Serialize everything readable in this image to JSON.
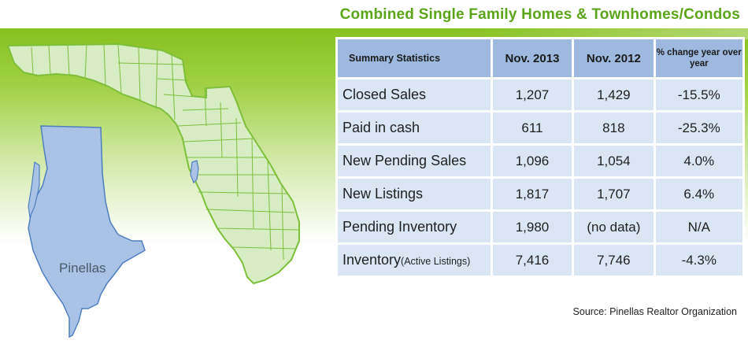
{
  "title": "Combined Single Family Homes & Townhomes/Condos",
  "map": {
    "label": "Pinellas",
    "land_color": "#d9edc4",
    "border_color": "#7cbf3a",
    "highlight_color": "#a9c3e6"
  },
  "colors": {
    "accent": "#5aa51a",
    "header_bg": "#9eb9df",
    "cell_bg": "#dbe6f4"
  },
  "table": {
    "headers": [
      "Summary Statistics",
      "Nov. 2013",
      "Nov. 2012",
      "% change year over year"
    ],
    "rows": [
      {
        "label": "Closed Sales",
        "label_sub": "",
        "nov2013": "1,207",
        "nov2012": "1,429",
        "change": "-15.5%"
      },
      {
        "label": "Paid in cash",
        "label_sub": "",
        "nov2013": "611",
        "nov2012": "818",
        "change": "-25.3%"
      },
      {
        "label": "New Pending Sales",
        "label_sub": "",
        "nov2013": "1,096",
        "nov2012": "1,054",
        "change": "4.0%"
      },
      {
        "label": "New Listings",
        "label_sub": "",
        "nov2013": "1,817",
        "nov2012": "1,707",
        "change": "6.4%"
      },
      {
        "label": "Pending Inventory",
        "label_sub": "",
        "nov2013": "1,980",
        "nov2012": "(no data)",
        "change": "N/A"
      },
      {
        "label": "Inventory",
        "label_sub": "(Active Listings)",
        "nov2013": "7,416",
        "nov2012": "7,746",
        "change": "-4.3%"
      }
    ]
  },
  "source": "Source: Pinellas Realtor Organization"
}
